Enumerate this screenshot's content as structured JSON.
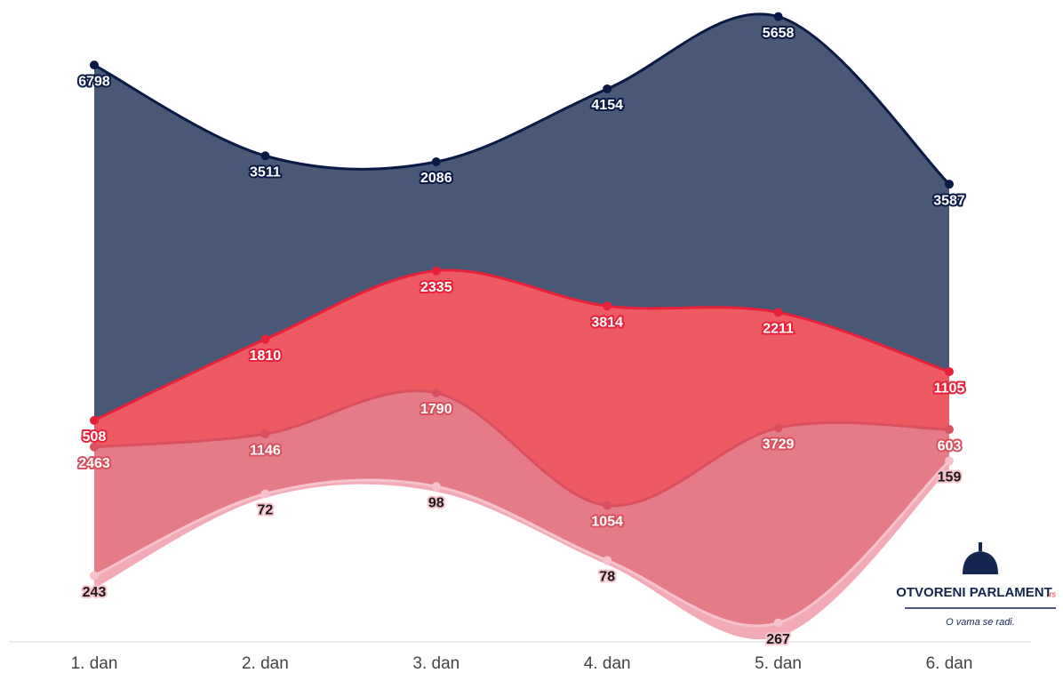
{
  "chart_data": {
    "type": "streamgraph",
    "categories": [
      "1. dan",
      "2. dan",
      "3. dan",
      "4. dan",
      "5. dan",
      "6. dan"
    ],
    "series": [
      {
        "color": "#f2aab7",
        "line_color": "#f6c3cc",
        "values": [
          243,
          72,
          98,
          78,
          267,
          159
        ]
      },
      {
        "color": "#e57b86",
        "line_color": "#d9505f",
        "values": [
          2463,
          1146,
          1790,
          1054,
          3729,
          603
        ]
      },
      {
        "color": "#ee5a62",
        "line_color": "#e8213a",
        "values": [
          508,
          1810,
          2335,
          3814,
          2211,
          1105
        ]
      },
      {
        "color": "#4a5878",
        "line_color": "#0b1a45",
        "values": [
          6798,
          3511,
          2086,
          4154,
          5658,
          3587
        ]
      }
    ]
  },
  "logo": {
    "name": "OTVORENI PARLAMENT",
    "suffix": ".rs",
    "tagline": "O vama se radi."
  }
}
